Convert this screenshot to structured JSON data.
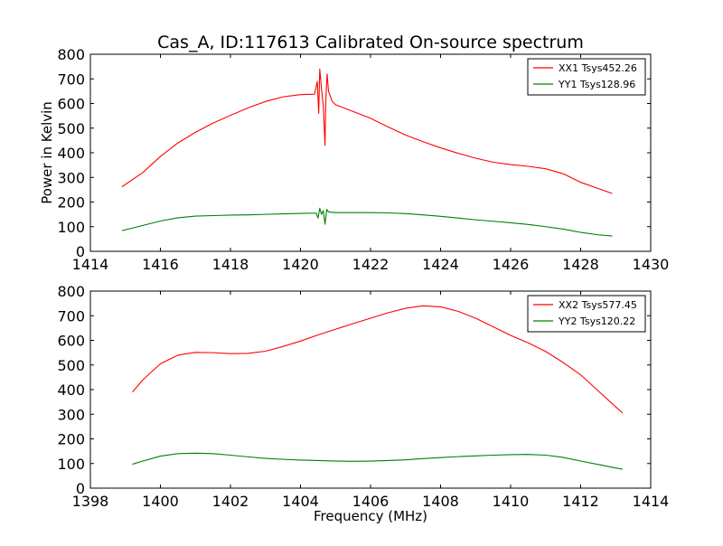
{
  "figure": {
    "title": "Cas_A, ID:117613 Calibrated On-source spectrum",
    "ylabel": "Power in Kelvin",
    "xlabel": "Frequency (MHz)"
  },
  "chart_data": [
    {
      "type": "line",
      "title": "Cas_A, ID:117613 Calibrated On-source spectrum",
      "xlabel": "",
      "ylabel": "Power in Kelvin",
      "xlim": [
        1414,
        1430
      ],
      "ylim": [
        0,
        800
      ],
      "xticks": [
        1414,
        1416,
        1418,
        1420,
        1422,
        1424,
        1426,
        1428,
        1430
      ],
      "yticks": [
        0,
        100,
        200,
        300,
        400,
        500,
        600,
        700,
        800
      ],
      "grid": false,
      "legend_position": "top-right",
      "series": [
        {
          "name": "XX1 Tsys452.26",
          "color": "#ff0000",
          "x": [
            1414.9,
            1415.5,
            1416.0,
            1416.5,
            1417.0,
            1417.5,
            1418.0,
            1418.5,
            1419.0,
            1419.5,
            1420.0,
            1420.4,
            1420.48,
            1420.52,
            1420.55,
            1420.6,
            1420.65,
            1420.7,
            1420.72,
            1420.76,
            1420.8,
            1420.9,
            1421.0,
            1421.5,
            1422.0,
            1422.5,
            1423.0,
            1423.5,
            1424.0,
            1424.5,
            1425.0,
            1425.5,
            1426.0,
            1426.5,
            1427.0,
            1427.5,
            1428.0,
            1428.5,
            1428.9
          ],
          "y": [
            262,
            320,
            385,
            440,
            483,
            520,
            552,
            582,
            608,
            627,
            636,
            638,
            690,
            560,
            740,
            660,
            590,
            430,
            600,
            720,
            650,
            610,
            595,
            568,
            540,
            505,
            472,
            445,
            420,
            398,
            378,
            362,
            352,
            345,
            335,
            315,
            280,
            255,
            235
          ]
        },
        {
          "name": "YY1 Tsys128.96",
          "color": "#008000",
          "x": [
            1414.9,
            1415.5,
            1416.0,
            1416.5,
            1417.0,
            1417.5,
            1418.0,
            1418.5,
            1419.0,
            1419.5,
            1420.0,
            1420.45,
            1420.5,
            1420.55,
            1420.6,
            1420.65,
            1420.7,
            1420.75,
            1420.8,
            1421.0,
            1421.5,
            1422.0,
            1422.5,
            1423.0,
            1423.5,
            1424.0,
            1424.5,
            1425.0,
            1425.5,
            1426.0,
            1426.5,
            1427.0,
            1427.5,
            1428.0,
            1428.5,
            1428.9
          ],
          "y": [
            84,
            105,
            123,
            136,
            143,
            145,
            147,
            148,
            150,
            152,
            154,
            155,
            135,
            175,
            150,
            165,
            110,
            170,
            160,
            157,
            157,
            157,
            156,
            153,
            148,
            142,
            135,
            128,
            122,
            116,
            109,
            100,
            90,
            77,
            67,
            62
          ]
        }
      ]
    },
    {
      "type": "line",
      "title": "",
      "xlabel": "Frequency (MHz)",
      "ylabel": "",
      "xlim": [
        1398,
        1414
      ],
      "ylim": [
        0,
        800
      ],
      "xticks": [
        1398,
        1400,
        1402,
        1404,
        1406,
        1408,
        1410,
        1412,
        1414
      ],
      "yticks": [
        0,
        100,
        200,
        300,
        400,
        500,
        600,
        700,
        800
      ],
      "grid": false,
      "legend_position": "top-right",
      "series": [
        {
          "name": "XX2 Tsys577.45",
          "color": "#ff0000",
          "x": [
            1399.2,
            1399.5,
            1400.0,
            1400.5,
            1401.0,
            1401.5,
            1402.0,
            1402.5,
            1403.0,
            1403.5,
            1404.0,
            1404.5,
            1405.0,
            1405.5,
            1406.0,
            1406.5,
            1407.0,
            1407.5,
            1408.0,
            1408.5,
            1409.0,
            1409.5,
            1410.0,
            1410.5,
            1411.0,
            1411.5,
            1412.0,
            1412.5,
            1413.0,
            1413.2
          ],
          "y": [
            390,
            440,
            505,
            540,
            551,
            550,
            546,
            547,
            556,
            575,
            597,
            622,
            645,
            668,
            690,
            712,
            730,
            740,
            736,
            718,
            690,
            655,
            620,
            590,
            555,
            510,
            460,
            395,
            330,
            305
          ]
        },
        {
          "name": "YY2 Tsys120.22",
          "color": "#008000",
          "x": [
            1399.2,
            1399.5,
            1400.0,
            1400.5,
            1401.0,
            1401.5,
            1402.0,
            1402.5,
            1403.0,
            1403.5,
            1404.0,
            1404.5,
            1405.0,
            1405.5,
            1406.0,
            1406.5,
            1407.0,
            1407.5,
            1408.0,
            1408.5,
            1409.0,
            1409.5,
            1410.0,
            1410.5,
            1411.0,
            1411.5,
            1412.0,
            1412.5,
            1413.0,
            1413.2
          ],
          "y": [
            97,
            110,
            130,
            140,
            142,
            140,
            134,
            127,
            121,
            117,
            114,
            112,
            110,
            109,
            110,
            112,
            115,
            120,
            124,
            128,
            131,
            134,
            136,
            137,
            134,
            125,
            110,
            96,
            82,
            77
          ]
        }
      ]
    }
  ]
}
